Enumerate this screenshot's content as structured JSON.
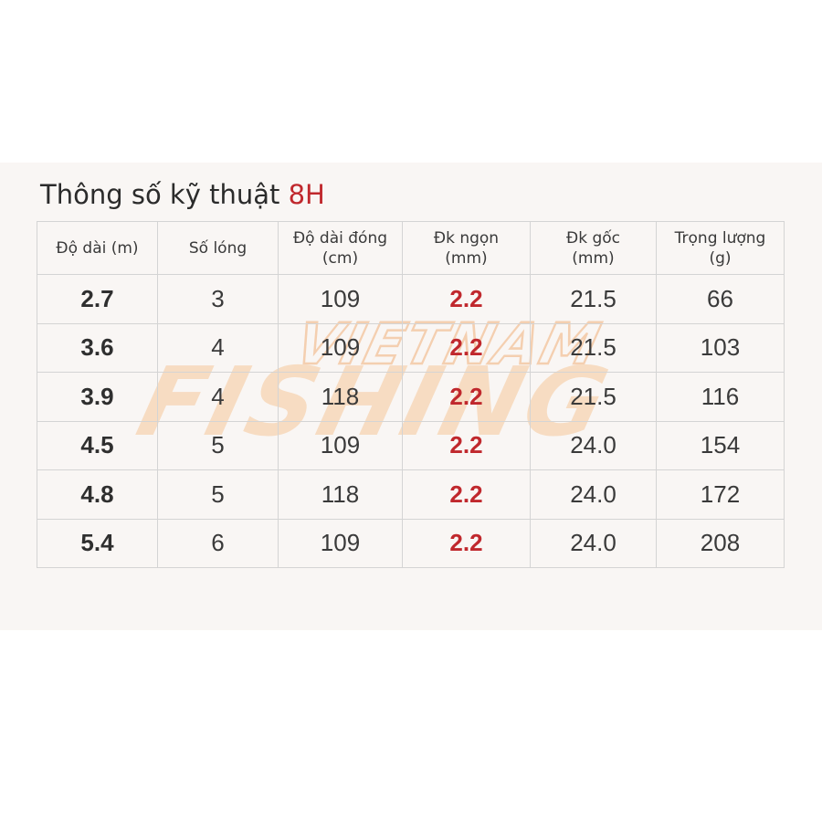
{
  "title": {
    "text": "Thông số kỹ thuật ",
    "model": "8H"
  },
  "watermark": {
    "line1": "VIETNAM",
    "line2": "FISHING",
    "color": "#f6c79a"
  },
  "colors": {
    "accent": "#c0282d",
    "text": "#3a3a3a",
    "border": "#d4d4d4"
  },
  "table": {
    "headers": [
      {
        "line1": "Độ dài (m)",
        "line2": ""
      },
      {
        "line1": "Số lóng",
        "line2": ""
      },
      {
        "line1": "Độ dài đóng",
        "line2": "(cm)"
      },
      {
        "line1": "Đk ngọn",
        "line2": "(mm)"
      },
      {
        "line1": "Đk gốc",
        "line2": "(mm)"
      },
      {
        "line1": "Trọng lượng",
        "line2": "(g)"
      }
    ],
    "rows": [
      [
        "2.7",
        "3",
        "109",
        "2.2",
        "21.5",
        "66"
      ],
      [
        "3.6",
        "4",
        "109",
        "2.2",
        "21.5",
        "103"
      ],
      [
        "3.9",
        "4",
        "118",
        "2.2",
        "21.5",
        "116"
      ],
      [
        "4.5",
        "5",
        "109",
        "2.2",
        "24.0",
        "154"
      ],
      [
        "4.8",
        "5",
        "118",
        "2.2",
        "24.0",
        "172"
      ],
      [
        "5.4",
        "6",
        "109",
        "2.2",
        "24.0",
        "208"
      ]
    ]
  }
}
